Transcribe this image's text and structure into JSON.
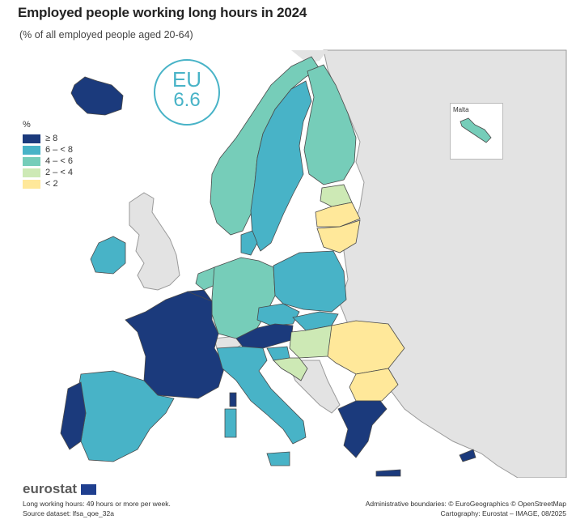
{
  "header": {
    "title": "Employed people working long hours in 2024",
    "subtitle": "(% of all employed people aged 20-64)"
  },
  "eu_badge": {
    "label": "EU",
    "value": "6.6"
  },
  "legend": {
    "unit": "%",
    "classes": [
      {
        "label": "≥ 8",
        "color": "#1b3a7c"
      },
      {
        "label": "6 – < 8",
        "color": "#48b3c7"
      },
      {
        "label": "4 – < 6",
        "color": "#76cdb9"
      },
      {
        "label": "2 – < 4",
        "color": "#cde9b5"
      },
      {
        "label": "< 2",
        "color": "#ffe89a"
      }
    ]
  },
  "inset": {
    "label": "Malta"
  },
  "colors": {
    "non_data": "#e3e3e3",
    "sea": "#ffffff",
    "border": "#4a4a4a"
  },
  "footer": {
    "logo": "eurostat",
    "note": "Long working hours: 49 hours or more per week.",
    "source": "Source dataset: lfsa_qoe_32a",
    "boundaries": "Administrative boundaries: © EuroGeographics © OpenStreetMap",
    "cartography": "Cartography: Eurostat – IMAGE, 08/2025"
  }
}
